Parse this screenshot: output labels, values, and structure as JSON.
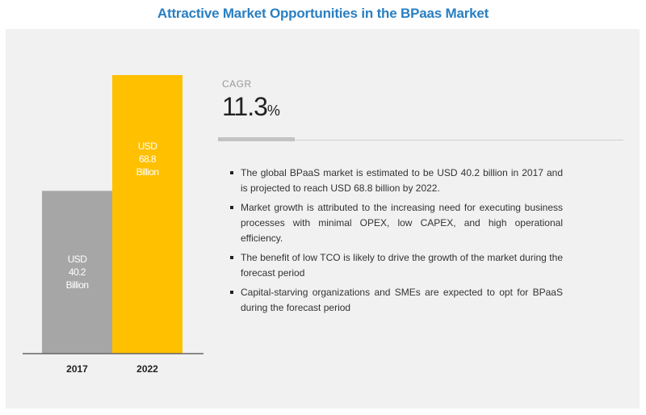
{
  "title": "Attractive Market Opportunities in the BPaas Market",
  "chart_data": {
    "type": "bar",
    "categories": [
      "2017",
      "2022"
    ],
    "values": [
      40.2,
      68.8
    ],
    "units": "USD Billion",
    "bar_labels": [
      {
        "line1": "USD",
        "line2": "40.2",
        "line3": "Billion"
      },
      {
        "line1": "USD",
        "line2": "68.8",
        "line3": "Billion"
      }
    ],
    "colors": [
      "#a6a6a6",
      "#ffc000"
    ],
    "ylim": [
      0,
      68.8
    ],
    "grid": false
  },
  "cagr": {
    "label": "CAGR",
    "value": "11.3",
    "unit": "%"
  },
  "bullets": [
    "The global BPaaS market is estimated to be USD 40.2 billion in 2017 and is projected to reach USD 68.8 billion by 2022.",
    "Market growth is attributed to the increasing need for executing business processes with minimal OPEX, low CAPEX, and high operational efficiency.",
    "The benefit of low TCO is likely to drive the growth of the market during the forecast period",
    "Capital-starving organizations and SMEs are expected to opt for BPaaS during the forecast period"
  ]
}
